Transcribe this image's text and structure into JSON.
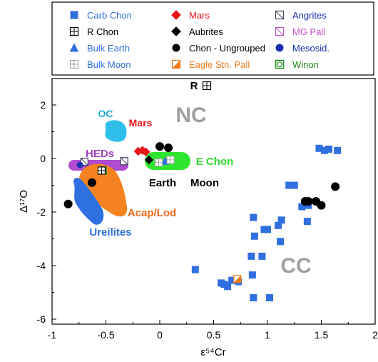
{
  "chart_data": {
    "type": "scatter",
    "title": "",
    "xlabel": "ε⁵⁴Cr",
    "ylabel": "Δ¹⁷O",
    "xlim": [
      -1,
      2
    ],
    "ylim": [
      -6,
      3
    ],
    "xticks": [
      "-1",
      "-0.5",
      "0",
      "0.5",
      "1",
      "1.5",
      "2"
    ],
    "yticks": [
      "-6",
      "-4",
      "-2",
      "0",
      "2"
    ],
    "grid": false,
    "legend_position": "top (box above the plot)",
    "legend": [
      {
        "label": "Carb Chon",
        "marker": "square-filled",
        "color": "#2F6FE0"
      },
      {
        "label": "R Chon",
        "marker": "square-grid-open",
        "color": "#000000"
      },
      {
        "label": "Bulk Earth",
        "marker": "triangle-filled",
        "color": "#2F6FE0"
      },
      {
        "label": "Bulk Moon",
        "marker": "square-grid-open",
        "color": "#AAAAAA"
      },
      {
        "label": "Mars",
        "marker": "diamond-filled",
        "color": "#E8141B"
      },
      {
        "label": "Aubrites",
        "marker": "diamond-filled",
        "color": "#000000"
      },
      {
        "label": "Chon - Ungrouped",
        "marker": "circle-filled",
        "color": "#000000"
      },
      {
        "label": "Eagle Stn. Pall",
        "marker": "square-half",
        "color": "#F07A1A"
      },
      {
        "label": "Angrites",
        "marker": "square-diag-open",
        "color": "#404060"
      },
      {
        "label": "MG Pall",
        "marker": "square-diag-open",
        "color": "#C050C0"
      },
      {
        "label": "Mesosid.",
        "marker": "circle-filled",
        "color": "#1A2FB0"
      },
      {
        "label": "Winon",
        "marker": "square-circle-open",
        "color": "#1E8A1E"
      }
    ],
    "region_labels": [
      {
        "text": "NC",
        "color": "#A0A0A0"
      },
      {
        "text": "CC",
        "color": "#A0A0A0"
      },
      {
        "text": "OC",
        "color": "#1AAAD6"
      },
      {
        "text": "Mars",
        "color": "#E8141B"
      },
      {
        "text": "HEDs",
        "color": "#A040C0"
      },
      {
        "text": "E Chon",
        "color": "#2EDB2E"
      },
      {
        "text": "Earth",
        "color": "#000000"
      },
      {
        "text": "Moon",
        "color": "#000000"
      },
      {
        "text": "Acap/Lod",
        "color": "#E86A1A"
      },
      {
        "text": "Ureilites",
        "color": "#2F6FE0"
      },
      {
        "text": "R",
        "color": "#000000"
      }
    ],
    "series": [
      {
        "name": "Carb Chon",
        "points": [
          [
            0.33,
            -4.15
          ],
          [
            0.57,
            -4.65
          ],
          [
            0.6,
            -4.7
          ],
          [
            0.63,
            -4.78
          ],
          [
            0.67,
            -4.55
          ],
          [
            0.73,
            -4.6
          ],
          [
            0.86,
            -4.35
          ],
          [
            0.87,
            -5.2
          ],
          [
            1.02,
            -5.2
          ],
          [
            0.85,
            -3.65
          ],
          [
            0.95,
            -3.65
          ],
          [
            0.87,
            -2.2
          ],
          [
            0.97,
            -2.65
          ],
          [
            1.0,
            -2.65
          ],
          [
            0.88,
            -2.9
          ],
          [
            1.1,
            -2.5
          ],
          [
            1.12,
            -3.1
          ],
          [
            1.2,
            -1.0
          ],
          [
            1.25,
            -1.0
          ],
          [
            1.13,
            -2.3
          ],
          [
            1.32,
            -1.8
          ],
          [
            1.38,
            -1.75
          ],
          [
            1.37,
            -2.35
          ],
          [
            1.48,
            0.38
          ],
          [
            1.53,
            0.3
          ],
          [
            1.57,
            0.35
          ],
          [
            1.65,
            0.3
          ]
        ]
      },
      {
        "name": "Chon - Ungrouped",
        "points": [
          [
            -0.85,
            -1.7
          ],
          [
            -0.63,
            -0.9
          ],
          [
            0.0,
            0.45
          ],
          [
            0.08,
            0.4
          ],
          [
            1.35,
            -1.6
          ],
          [
            1.38,
            -1.6
          ],
          [
            1.45,
            -1.6
          ],
          [
            1.5,
            -1.75
          ],
          [
            1.63,
            -1.05
          ]
        ]
      },
      {
        "name": "Mars",
        "points": [
          [
            -0.2,
            0.27
          ],
          [
            -0.16,
            0.3
          ],
          [
            -0.13,
            0.25
          ]
        ]
      },
      {
        "name": "Aubrites",
        "points": [
          [
            -0.1,
            -0.05
          ]
        ]
      },
      {
        "name": "Bulk Earth",
        "points": [
          [
            0.05,
            -0.1
          ]
        ]
      },
      {
        "name": "Bulk Moon",
        "points": [
          [
            -0.01,
            -0.15
          ],
          [
            0.1,
            -0.05
          ]
        ]
      },
      {
        "name": "Angrites",
        "points": [
          [
            -0.7,
            -0.12
          ],
          [
            -0.33,
            -0.1
          ]
        ]
      },
      {
        "name": "Mesosid.",
        "points": [
          [
            -0.74,
            -0.24
          ]
        ]
      },
      {
        "name": "Winon",
        "points": [
          [
            -0.53,
            -0.45
          ]
        ]
      },
      {
        "name": "Eagle Stn. Pall",
        "points": [
          [
            0.72,
            -4.5
          ]
        ]
      },
      {
        "name": "R Chon",
        "points": [
          [
            -0.54,
            -0.45
          ]
        ]
      }
    ]
  }
}
